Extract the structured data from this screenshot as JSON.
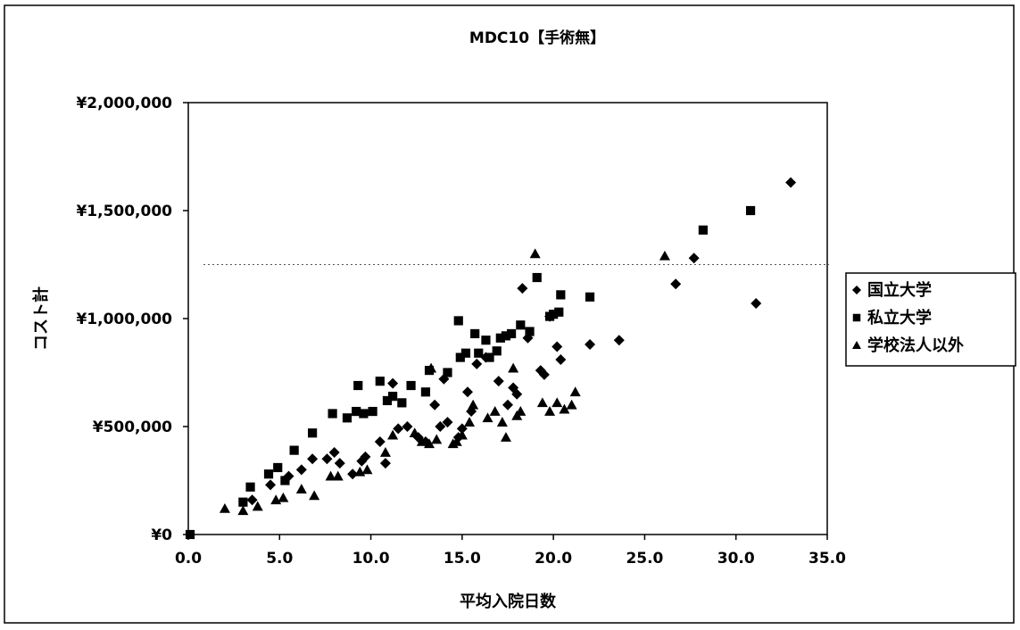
{
  "chart_data": {
    "type": "scatter",
    "title": "MDC10【手術無】",
    "xlabel": "平均入院日数",
    "ylabel": "コスト計",
    "xlim": [
      0,
      35
    ],
    "ylim": [
      0,
      2000000
    ],
    "x_ticks": [
      "0.0",
      "5.0",
      "10.0",
      "15.0",
      "20.0",
      "25.0",
      "30.0",
      "35.0"
    ],
    "y_ticks": [
      "¥0",
      "¥500,000",
      "¥1,000,000",
      "¥1,500,000",
      "¥2,000,000"
    ],
    "reference_line_y": 1250000,
    "legend_position": "right",
    "series": [
      {
        "name": "国立大学",
        "marker": "diamond",
        "points": [
          [
            3.5,
            160000
          ],
          [
            4.5,
            230000
          ],
          [
            5.5,
            270000
          ],
          [
            6.2,
            300000
          ],
          [
            6.8,
            350000
          ],
          [
            7.6,
            350000
          ],
          [
            8.0,
            380000
          ],
          [
            8.3,
            330000
          ],
          [
            9.0,
            280000
          ],
          [
            9.5,
            340000
          ],
          [
            9.7,
            360000
          ],
          [
            10.5,
            430000
          ],
          [
            10.8,
            330000
          ],
          [
            11.2,
            700000
          ],
          [
            11.5,
            490000
          ],
          [
            12.0,
            500000
          ],
          [
            12.6,
            450000
          ],
          [
            13.0,
            430000
          ],
          [
            13.5,
            600000
          ],
          [
            13.8,
            500000
          ],
          [
            14.0,
            720000
          ],
          [
            14.2,
            520000
          ],
          [
            14.8,
            450000
          ],
          [
            15.0,
            490000
          ],
          [
            15.3,
            660000
          ],
          [
            15.5,
            570000
          ],
          [
            15.8,
            790000
          ],
          [
            16.3,
            820000
          ],
          [
            17.0,
            710000
          ],
          [
            17.5,
            600000
          ],
          [
            17.8,
            680000
          ],
          [
            18.0,
            650000
          ],
          [
            18.3,
            1140000
          ],
          [
            18.6,
            910000
          ],
          [
            19.3,
            760000
          ],
          [
            19.5,
            740000
          ],
          [
            19.8,
            1010000
          ],
          [
            20.2,
            870000
          ],
          [
            20.4,
            810000
          ],
          [
            22.0,
            880000
          ],
          [
            23.6,
            900000
          ],
          [
            26.7,
            1160000
          ],
          [
            27.7,
            1280000
          ],
          [
            31.1,
            1070000
          ],
          [
            33.0,
            1630000
          ]
        ]
      },
      {
        "name": "私立大学",
        "marker": "square",
        "points": [
          [
            0.1,
            0
          ],
          [
            3.0,
            150000
          ],
          [
            3.4,
            220000
          ],
          [
            4.4,
            280000
          ],
          [
            4.9,
            310000
          ],
          [
            5.3,
            250000
          ],
          [
            5.8,
            390000
          ],
          [
            6.8,
            470000
          ],
          [
            7.9,
            560000
          ],
          [
            8.7,
            540000
          ],
          [
            9.2,
            570000
          ],
          [
            9.3,
            690000
          ],
          [
            9.6,
            560000
          ],
          [
            10.1,
            570000
          ],
          [
            10.5,
            710000
          ],
          [
            10.9,
            620000
          ],
          [
            11.2,
            640000
          ],
          [
            11.7,
            610000
          ],
          [
            12.2,
            690000
          ],
          [
            13.0,
            660000
          ],
          [
            13.2,
            760000
          ],
          [
            14.2,
            750000
          ],
          [
            14.8,
            990000
          ],
          [
            14.9,
            820000
          ],
          [
            15.2,
            840000
          ],
          [
            15.7,
            930000
          ],
          [
            15.9,
            840000
          ],
          [
            16.3,
            900000
          ],
          [
            16.5,
            820000
          ],
          [
            16.9,
            850000
          ],
          [
            17.1,
            910000
          ],
          [
            17.4,
            920000
          ],
          [
            17.7,
            930000
          ],
          [
            18.2,
            970000
          ],
          [
            18.7,
            940000
          ],
          [
            19.1,
            1190000
          ],
          [
            19.8,
            1010000
          ],
          [
            20.0,
            1020000
          ],
          [
            20.3,
            1030000
          ],
          [
            20.4,
            1110000
          ],
          [
            22.0,
            1100000
          ],
          [
            28.2,
            1410000
          ],
          [
            30.8,
            1500000
          ]
        ]
      },
      {
        "name": "学校法人以外",
        "marker": "triangle",
        "points": [
          [
            2.0,
            120000
          ],
          [
            3.0,
            110000
          ],
          [
            3.8,
            130000
          ],
          [
            4.8,
            160000
          ],
          [
            5.2,
            170000
          ],
          [
            6.2,
            210000
          ],
          [
            6.9,
            180000
          ],
          [
            7.8,
            270000
          ],
          [
            8.2,
            270000
          ],
          [
            9.4,
            290000
          ],
          [
            9.8,
            300000
          ],
          [
            10.8,
            380000
          ],
          [
            11.2,
            460000
          ],
          [
            12.4,
            470000
          ],
          [
            12.8,
            430000
          ],
          [
            13.2,
            420000
          ],
          [
            13.6,
            440000
          ],
          [
            13.3,
            770000
          ],
          [
            14.5,
            420000
          ],
          [
            14.7,
            430000
          ],
          [
            15.0,
            460000
          ],
          [
            15.4,
            520000
          ],
          [
            15.6,
            600000
          ],
          [
            16.4,
            540000
          ],
          [
            16.8,
            570000
          ],
          [
            17.2,
            520000
          ],
          [
            17.4,
            450000
          ],
          [
            17.8,
            770000
          ],
          [
            18.0,
            550000
          ],
          [
            18.2,
            570000
          ],
          [
            19.0,
            1300000
          ],
          [
            19.4,
            610000
          ],
          [
            19.8,
            570000
          ],
          [
            20.2,
            610000
          ],
          [
            20.6,
            580000
          ],
          [
            21.0,
            600000
          ],
          [
            21.2,
            660000
          ],
          [
            26.1,
            1290000
          ]
        ]
      }
    ]
  }
}
